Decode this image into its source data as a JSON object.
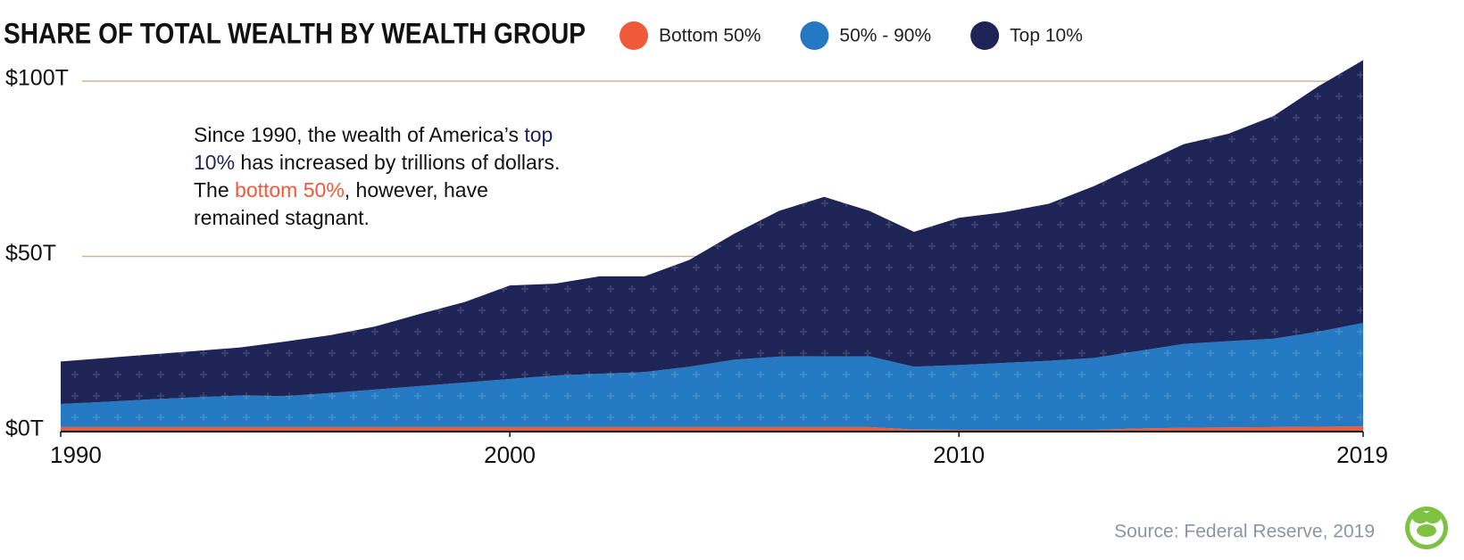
{
  "chart_data": {
    "type": "stacked_area",
    "title": "SHARE OF TOTAL WEALTH BY WEALTH GROUP",
    "annotation": [
      "Since 1990, the wealth of America’s ",
      "top 10%",
      " has increased by trillions of dollars. The ",
      "bottom 50%",
      ", however, have remained stagnant."
    ],
    "source": "Source: Federal Reserve, 2019",
    "x": [
      1990,
      1991,
      1992,
      1993,
      1994,
      1995,
      1996,
      1997,
      1998,
      1999,
      2000,
      2001,
      2002,
      2003,
      2004,
      2005,
      2006,
      2007,
      2008,
      2009,
      2010,
      2011,
      2012,
      2013,
      2014,
      2015,
      2016,
      2017,
      2018,
      2019
    ],
    "series": [
      {
        "name": "Bottom 50%",
        "color": "#ef5a3a",
        "values": [
          1.3,
          1.3,
          1.3,
          1.3,
          1.3,
          1.3,
          1.3,
          1.3,
          1.3,
          1.3,
          1.3,
          1.3,
          1.3,
          1.3,
          1.3,
          1.3,
          1.3,
          1.3,
          1.3,
          0.6,
          0.5,
          0.5,
          0.5,
          0.5,
          0.9,
          1.1,
          1.2,
          1.3,
          1.4,
          1.5
        ]
      },
      {
        "name": "50% - 90%",
        "color": "#2479c2",
        "values": [
          6.6,
          7.2,
          7.9,
          8.5,
          9.0,
          8.8,
          9.7,
          10.7,
          11.7,
          12.7,
          13.7,
          14.7,
          15.2,
          15.7,
          17.2,
          19.2,
          20.1,
          20.2,
          20.2,
          17.9,
          18.5,
          19.1,
          19.7,
          20.5,
          22.1,
          23.9,
          24.6,
          25.2,
          27.1,
          29.5
        ]
      },
      {
        "name": "Top 10%",
        "color": "#1f2456",
        "values": [
          12.1,
          12.5,
          12.8,
          13.2,
          13.7,
          15.6,
          16.5,
          18.0,
          20.6,
          23.0,
          26.7,
          26.2,
          27.8,
          27.3,
          30.5,
          36.0,
          41.6,
          45.5,
          41.5,
          38.5,
          42.0,
          43.0,
          44.8,
          49.0,
          53.0,
          57.0,
          59.2,
          63.5,
          70.0,
          75.0
        ]
      }
    ],
    "xlim": [
      1990,
      2019
    ],
    "xticks": [
      1990,
      2000,
      2010,
      2019
    ],
    "ylim": [
      0,
      110
    ],
    "yticks": [
      {
        "value": 0,
        "label": "$0T"
      },
      {
        "value": 50,
        "label": "$50T"
      },
      {
        "value": 100,
        "label": "$100T"
      }
    ],
    "grid": true,
    "grid_color": "#c9b79a"
  }
}
